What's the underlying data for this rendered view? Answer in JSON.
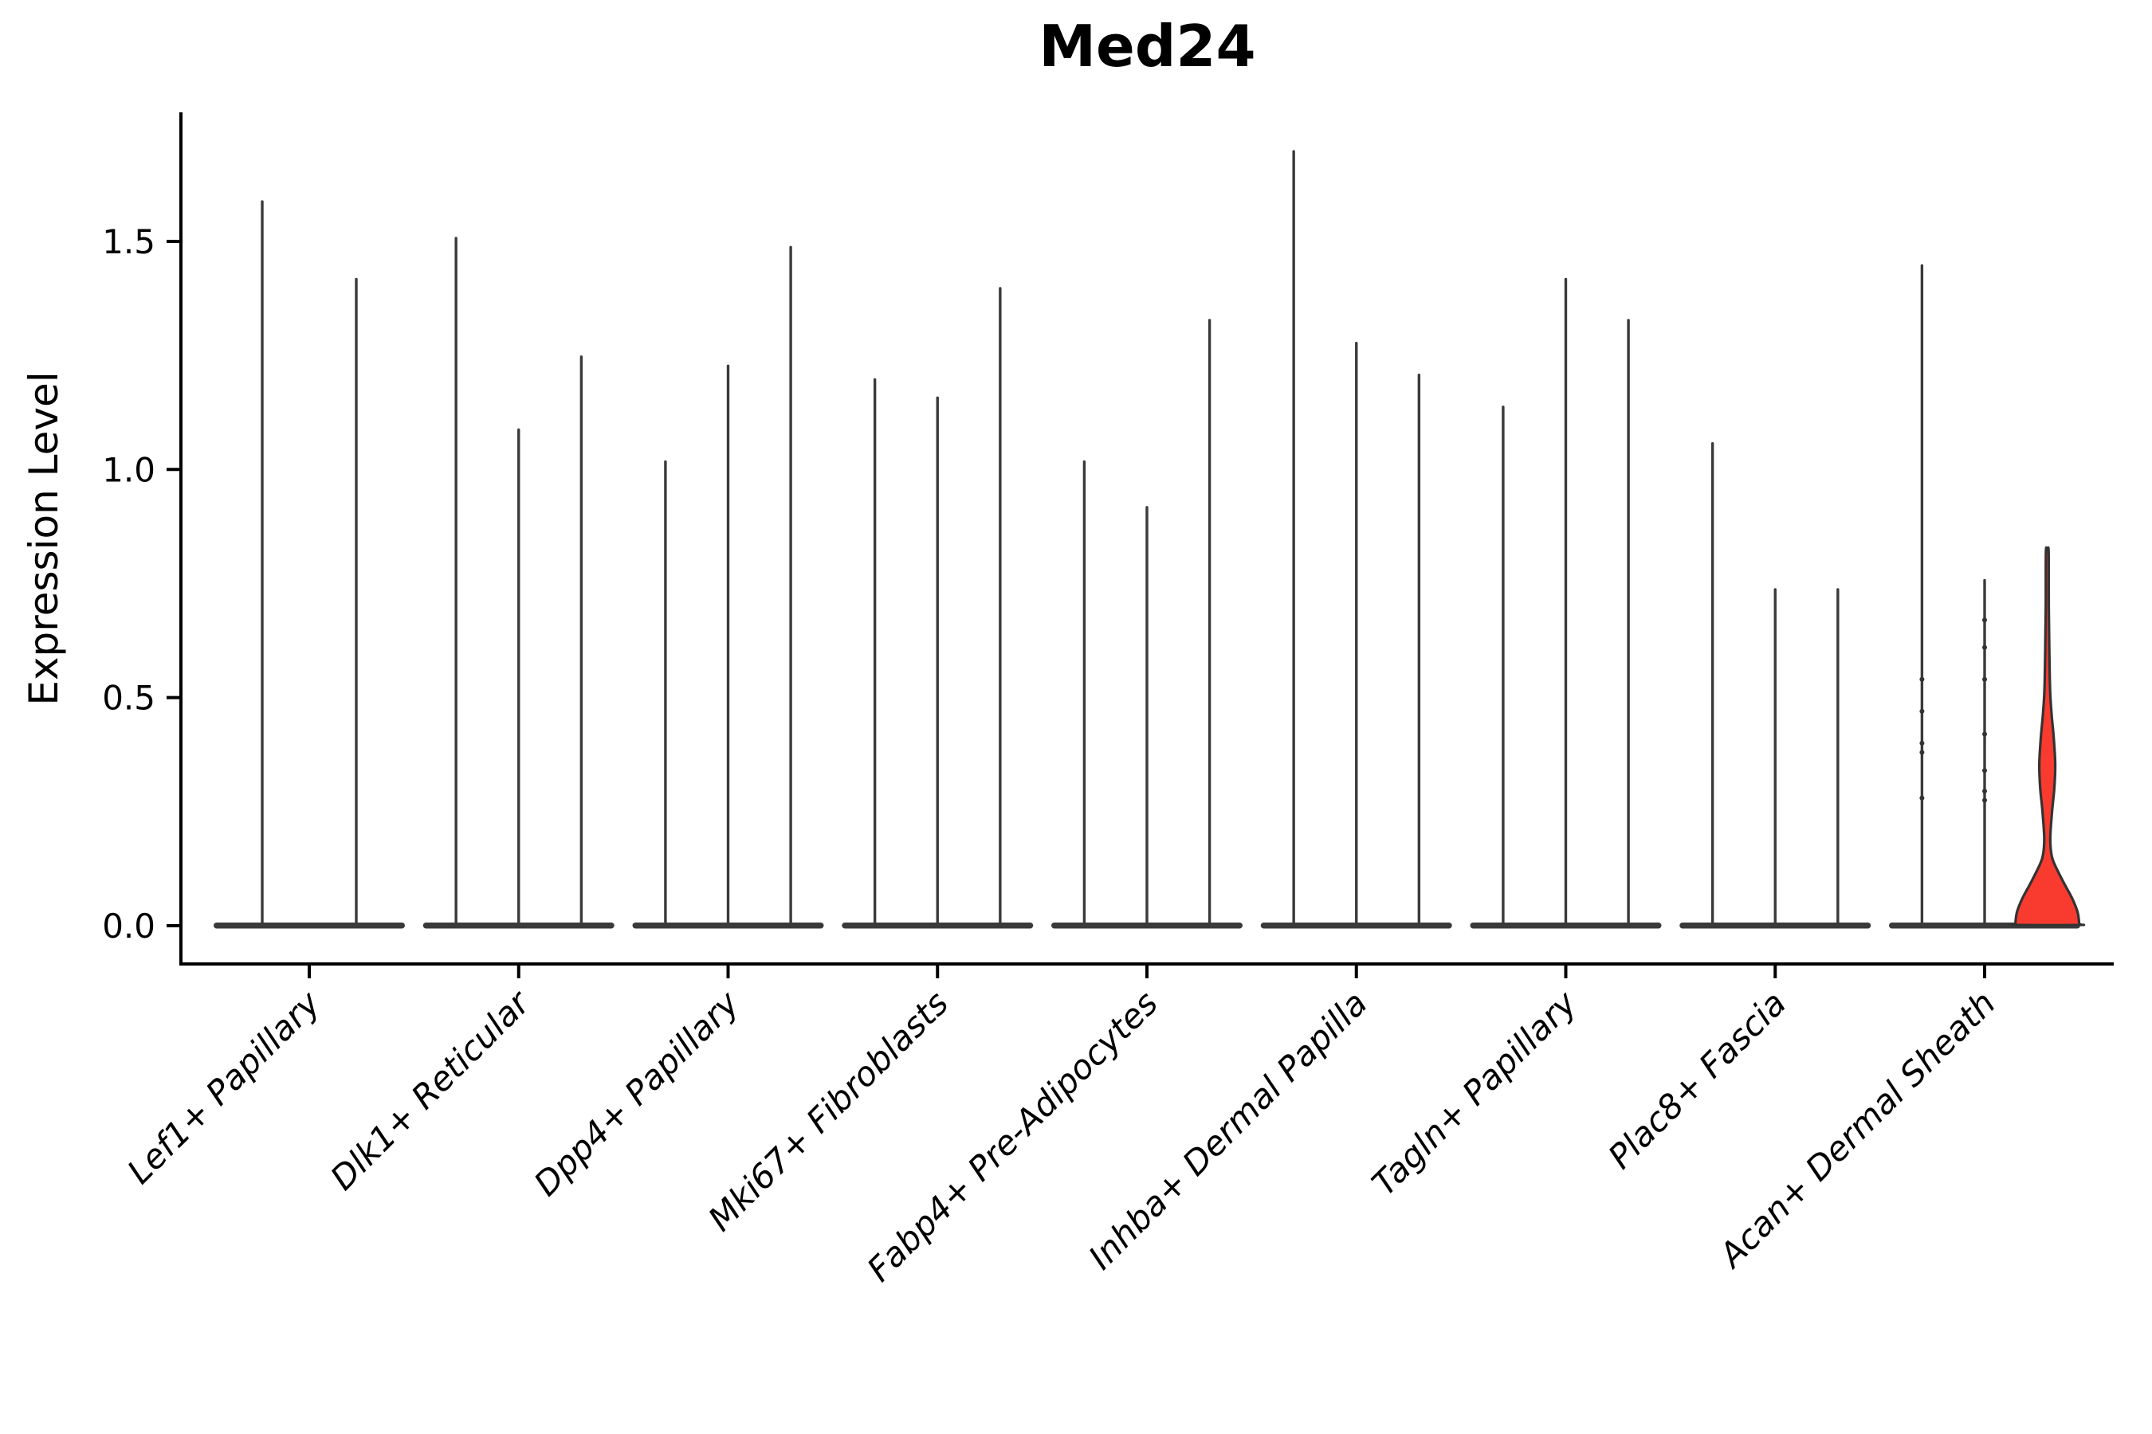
{
  "chart_data": {
    "type": "violin",
    "title": "Med24",
    "xlabel": "",
    "ylabel": "Expression Level",
    "ytick_labels": [
      "0.0",
      "0.5",
      "1.0",
      "1.5"
    ],
    "ytick_values": [
      0.0,
      0.5,
      1.0,
      1.5
    ],
    "ylim": [
      -0.084,
      1.783
    ],
    "grid": "off",
    "legend": "none",
    "label_style": "italic, rotated 45deg",
    "categories": [
      "Lef1+ Papillary",
      "Dlk1+ Reticular",
      "Dpp4+ Papillary",
      "Mki67+ Fibroblasts",
      "Fabp4+ Pre-Adipocytes",
      "Inhba+ Dermal Papilla",
      "Tagln+ Papillary",
      "Plac8+ Fascia",
      "Acan+ Dermal Sheath"
    ],
    "description": "Needle-thin violin plots of Med24 expression per fibroblast cluster; most cells are at 0 so violins collapse to spikes; only the last violin (Acan+ Dermal Sheath, 3rd) is a filled red violin shape.",
    "groups": [
      {
        "category": "Lef1+ Papillary",
        "violins": [
          {
            "max": 1.59
          },
          {
            "max": 1.42
          }
        ]
      },
      {
        "category": "Dlk1+ Reticular",
        "violins": [
          {
            "max": 1.51
          },
          {
            "max": 1.09
          },
          {
            "max": 1.25
          }
        ]
      },
      {
        "category": "Dpp4+ Papillary",
        "violins": [
          {
            "max": 1.02
          },
          {
            "max": 1.23
          },
          {
            "max": 1.49
          }
        ]
      },
      {
        "category": "Mki67+ Fibroblasts",
        "violins": [
          {
            "max": 1.2
          },
          {
            "max": 1.16
          },
          {
            "max": 1.4
          }
        ]
      },
      {
        "category": "Fabp4+ Pre-Adipocytes",
        "violins": [
          {
            "max": 1.02
          },
          {
            "max": 0.92
          },
          {
            "max": 1.33
          }
        ]
      },
      {
        "category": "Inhba+ Dermal Papilla",
        "violins": [
          {
            "max": 1.7
          },
          {
            "max": 1.28
          },
          {
            "max": 1.21
          }
        ]
      },
      {
        "category": "Tagln+ Papillary",
        "violins": [
          {
            "max": 1.14
          },
          {
            "max": 1.42
          },
          {
            "max": 1.33
          }
        ]
      },
      {
        "category": "Plac8+ Fascia",
        "violins": [
          {
            "max": 1.06
          },
          {
            "max": 0.74
          },
          {
            "max": 0.74
          }
        ]
      },
      {
        "category": "Acan+ Dermal Sheath",
        "violins": [
          {
            "max": 1.45,
            "dots": [
              0.54,
              0.47,
              0.4,
              0.38,
              0.28
            ]
          },
          {
            "max": 0.76,
            "dots": [
              0.67,
              0.61,
              0.54,
              0.42,
              0.34,
              0.295,
              0.275
            ]
          },
          {
            "max": 0.82,
            "highlight": true,
            "profile": [
              [
                0.82,
                0.042
              ],
              [
                0.7,
                0.048
              ],
              [
                0.6,
                0.065
              ],
              [
                0.515,
                0.09
              ],
              [
                0.46,
                0.14
              ],
              [
                0.41,
                0.205
              ],
              [
                0.353,
                0.25
              ],
              [
                0.3,
                0.22
              ],
              [
                0.25,
                0.15
              ],
              [
                0.19,
                0.095
              ],
              [
                0.15,
                0.15
              ],
              [
                0.12,
                0.33
              ],
              [
                0.09,
                0.55
              ],
              [
                0.06,
                0.78
              ],
              [
                0.03,
                0.95
              ],
              [
                0.005,
                1.0
              ]
            ]
          }
        ]
      }
    ],
    "colors": {
      "highlight_fill": "#f93b2f",
      "violin_stroke": "#333333",
      "needle": "#3a3a3a",
      "axis": "#000000",
      "text": "#000000"
    }
  }
}
